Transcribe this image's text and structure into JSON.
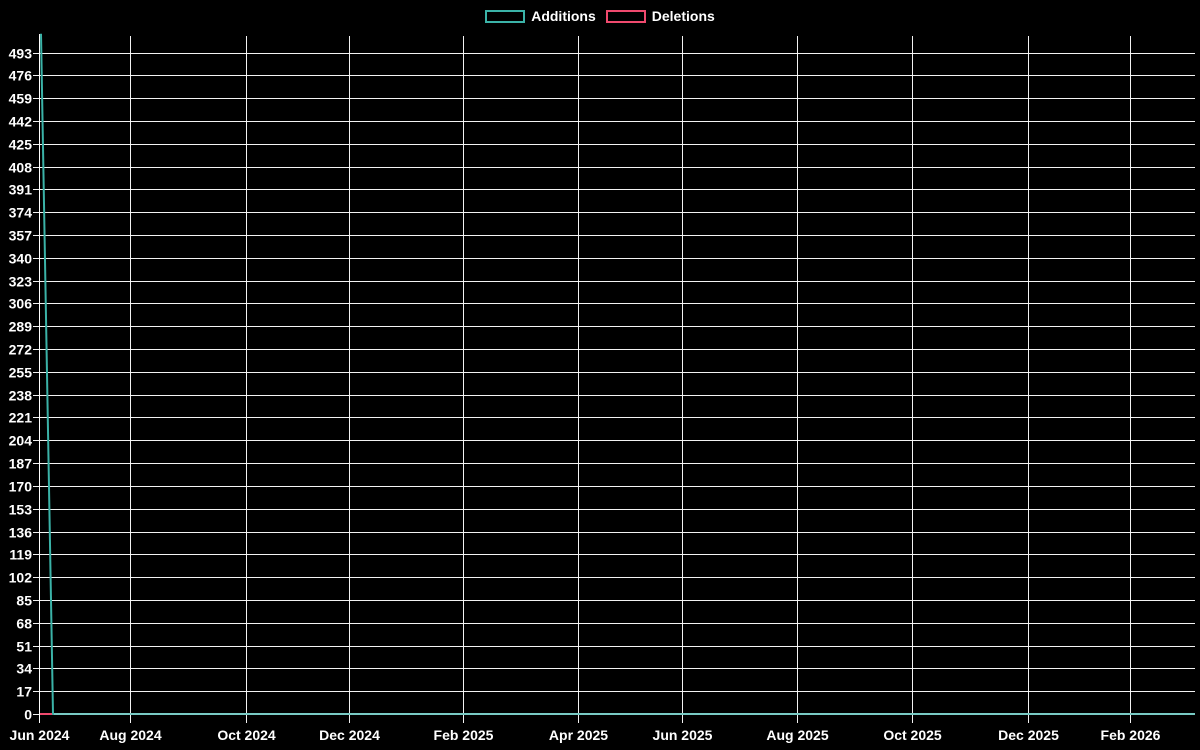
{
  "app": {
    "description": "Code frequency chart: weekly additions and deletions"
  },
  "legend": {
    "items": [
      {
        "label": "Additions",
        "color": "#3bb3a8"
      },
      {
        "label": "Deletions",
        "color": "#f04a6e"
      }
    ]
  },
  "chart_data": {
    "type": "line",
    "title": "",
    "background_color": "#000000",
    "grid": true,
    "grid_color": "#ffffff",
    "text_color": "#ffffff",
    "legend_position": "top-center",
    "x_axis": {
      "tick_labels": [
        "Jun 2024",
        "Aug 2024",
        "Oct 2024",
        "Dec 2024",
        "Feb 2025",
        "Apr 2025",
        "Jun 2025",
        "Aug 2025",
        "Oct 2025",
        "Dec 2025",
        "Feb 2026"
      ],
      "start": "Jun 2024",
      "end": "Feb 2026"
    },
    "y_axis": {
      "tick_labels": [
        0,
        17,
        34,
        51,
        68,
        85,
        102,
        119,
        136,
        153,
        170,
        187,
        204,
        221,
        238,
        255,
        272,
        289,
        306,
        323,
        340,
        357,
        374,
        391,
        408,
        425,
        442,
        459,
        476,
        493
      ],
      "tick_step": 17,
      "min": 0,
      "max": 507
    },
    "series": [
      {
        "name": "Additions",
        "color": "#3bb3a8",
        "points": [
          {
            "x": "Jun 2024 week 1",
            "y": 507
          },
          {
            "x": "Jun 2024 week 2",
            "y": 0
          },
          {
            "x": "Feb 2026 end",
            "y": 0
          }
        ]
      },
      {
        "name": "Deletions",
        "color": "#f04a6e",
        "points": [
          {
            "x": "Jun 2024 week 1",
            "y": 0
          },
          {
            "x": "Feb 2026 end",
            "y": 0
          }
        ]
      }
    ]
  }
}
